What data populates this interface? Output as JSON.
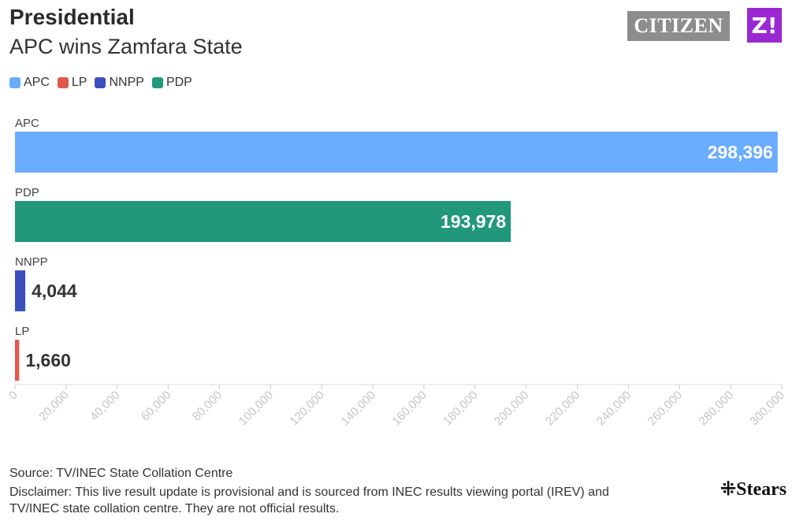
{
  "header": {
    "title": "Presidential",
    "subtitle": "APC wins Zamfara State"
  },
  "logos": {
    "citizen": "CITIZEN",
    "z": "Z!",
    "stears": "Stears"
  },
  "legend": [
    {
      "label": "APC",
      "color": "#6aacff"
    },
    {
      "label": "LP",
      "color": "#e2574c"
    },
    {
      "label": "NNPP",
      "color": "#3b4fbf"
    },
    {
      "label": "PDP",
      "color": "#22987a"
    }
  ],
  "chart_data": {
    "type": "bar",
    "orientation": "horizontal",
    "categories": [
      "APC",
      "PDP",
      "NNPP",
      "LP"
    ],
    "values": [
      298396,
      193978,
      4044,
      1660
    ],
    "value_labels": [
      "298,396",
      "193,978",
      "4,044",
      "1,660"
    ],
    "colors": [
      "#6aacff",
      "#22987a",
      "#3b4fbf",
      "#e2574c"
    ],
    "xlim": [
      0,
      300000
    ],
    "xticks": [
      0,
      20000,
      40000,
      60000,
      80000,
      100000,
      120000,
      140000,
      160000,
      180000,
      200000,
      220000,
      240000,
      260000,
      280000,
      300000
    ],
    "xtick_labels": [
      "0",
      "20,000",
      "40,000",
      "60,000",
      "80,000",
      "100,000",
      "120,000",
      "140,000",
      "160,000",
      "180,000",
      "200,000",
      "220,000",
      "240,000",
      "260,000",
      "280,000",
      "300,000"
    ],
    "grid": false
  },
  "footer": {
    "source": "Source: TV/INEC State Collation Centre",
    "disclaimer_line1": "Disclaimer: This live result update is provisional and is sourced from INEC results viewing portal (IREV) and",
    "disclaimer_line2": "TV/INEC state collation centre. They are not official results."
  }
}
